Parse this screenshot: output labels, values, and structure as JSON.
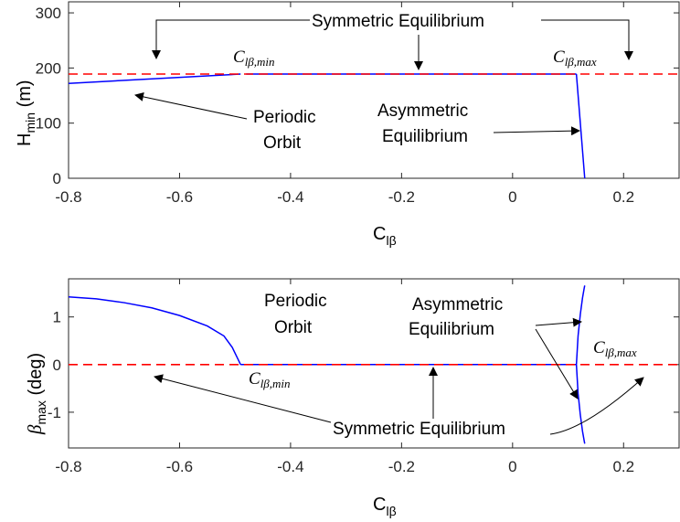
{
  "chart_data": [
    {
      "type": "line",
      "ylabel": {
        "main": "H",
        "sub": "min",
        "unit": " (m)"
      },
      "xlabel": {
        "main": "C",
        "sub": "lβ"
      },
      "xlim": [
        -0.8,
        0.3
      ],
      "ylim": [
        0,
        320
      ],
      "xticks": [
        -0.8,
        -0.6,
        -0.4,
        -0.2,
        0,
        0.2
      ],
      "xtick_labels": [
        "-0.8",
        "-0.6",
        "-0.4",
        "-0.2",
        "0",
        "0.2"
      ],
      "yticks": [
        0,
        100,
        200,
        300
      ],
      "ytick_labels": [
        "0",
        "100",
        "200",
        "300"
      ],
      "series": [
        {
          "role": "periodic",
          "color": "#0000ff",
          "style": "solid",
          "x": [
            -0.8,
            -0.49
          ],
          "y": [
            172,
            189
          ]
        },
        {
          "role": "symmetric-stable",
          "color": "#0000ff",
          "style": "solid",
          "x": [
            -0.48,
            0.115
          ],
          "y": [
            189,
            189
          ]
        },
        {
          "role": "asymmetric",
          "color": "#0000ff",
          "style": "solid",
          "x": [
            0.115,
            0.13
          ],
          "y": [
            189,
            0
          ]
        },
        {
          "role": "symmetric-reference",
          "color": "#ff0000",
          "style": "dashed",
          "x": [
            -0.8,
            0.3
          ],
          "y": [
            189,
            189
          ]
        }
      ],
      "annotations": [
        {
          "text": "Symmetric Equilibrium",
          "kind": "text"
        },
        {
          "text": "Periodic",
          "kind": "text"
        },
        {
          "text": "Orbit",
          "kind": "text"
        },
        {
          "text": "Asymmetric",
          "kind": "text"
        },
        {
          "text": "Equilibrium",
          "kind": "text"
        },
        {
          "math": "C",
          "sub": "lβ,min",
          "kind": "math",
          "x": -0.51,
          "y": 230
        },
        {
          "math": "C",
          "sub": "lβ,max",
          "kind": "math",
          "x": 0.07,
          "y": 230
        }
      ],
      "arrows": [
        {
          "to": [
            -0.69,
            200
          ]
        },
        {
          "to": [
            -0.2,
            195
          ]
        },
        {
          "to": [
            0.2,
            197
          ]
        },
        {
          "to": [
            -0.75,
            160
          ]
        },
        {
          "to": [
            0.117,
            90
          ]
        }
      ]
    },
    {
      "type": "line",
      "ylabel": {
        "main": "β",
        "sub": "max",
        "unit": " (deg)"
      },
      "xlabel": {
        "main": "C",
        "sub": "lβ"
      },
      "xlim": [
        -0.8,
        0.3
      ],
      "ylim": [
        -1.75,
        1.8
      ],
      "xticks": [
        -0.8,
        -0.6,
        -0.4,
        -0.2,
        0,
        0.2
      ],
      "xtick_labels": [
        "-0.8",
        "-0.6",
        "-0.4",
        "-0.2",
        "0",
        "0.2"
      ],
      "yticks": [
        -1,
        0,
        1
      ],
      "ytick_labels": [
        "-1",
        "0",
        "1"
      ],
      "series": [
        {
          "role": "periodic",
          "color": "#0000ff",
          "style": "solid",
          "x": [
            -0.8,
            -0.75,
            -0.7,
            -0.65,
            -0.6,
            -0.55,
            -0.52,
            -0.505,
            -0.495,
            -0.49
          ],
          "y": [
            1.42,
            1.38,
            1.3,
            1.19,
            1.03,
            0.81,
            0.6,
            0.36,
            0.12,
            0.0
          ]
        },
        {
          "role": "symmetric-stable",
          "color": "#0000ff",
          "style": "solid",
          "x": [
            -0.49,
            0.115
          ],
          "y": [
            0.0,
            0.0
          ]
        },
        {
          "role": "asymmetric-upper",
          "color": "#0000ff",
          "style": "solid",
          "x": [
            0.115,
            0.118,
            0.122,
            0.126,
            0.129,
            0.13
          ],
          "y": [
            0.0,
            0.6,
            1.05,
            1.4,
            1.6,
            1.66
          ]
        },
        {
          "role": "asymmetric-lower",
          "color": "#0000ff",
          "style": "solid",
          "x": [
            0.115,
            0.118,
            0.122,
            0.126,
            0.129,
            0.13
          ],
          "y": [
            0.0,
            -0.6,
            -1.05,
            -1.4,
            -1.6,
            -1.66
          ]
        },
        {
          "role": "symmetric-reference",
          "color": "#ff0000",
          "style": "dashed",
          "x": [
            -0.8,
            0.3
          ],
          "y": [
            0.0,
            0.0
          ]
        }
      ],
      "annotations": [
        {
          "text": "Periodic",
          "kind": "text"
        },
        {
          "text": "Orbit",
          "kind": "text"
        },
        {
          "text": "Asymmetric",
          "kind": "text"
        },
        {
          "text": "Equilibrium",
          "kind": "text"
        },
        {
          "text": "Symmetric Equilibrium",
          "kind": "text"
        },
        {
          "math": "C",
          "sub": "lβ,min",
          "kind": "math",
          "x": -0.52,
          "y": -0.38
        },
        {
          "math": "C",
          "sub": "lβ,max",
          "kind": "math",
          "x": 0.14,
          "y": 0.32
        }
      ],
      "arrows": [
        {
          "to": [
            -0.72,
            -0.24
          ]
        },
        {
          "to": [
            -0.18,
            -0.05
          ]
        },
        {
          "to": [
            0.23,
            -0.22
          ]
        },
        {
          "to": [
            0.11,
            0.72
          ]
        },
        {
          "to": [
            0.105,
            -0.71
          ]
        }
      ]
    }
  ]
}
